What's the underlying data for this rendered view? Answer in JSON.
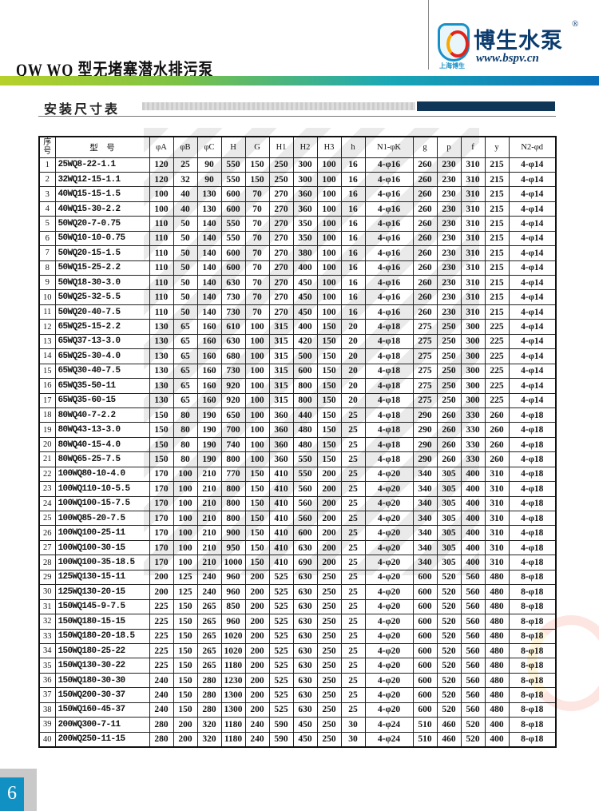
{
  "header": {
    "title": "QW  WQ 型无堵塞潜水排污泵",
    "logo": {
      "brand": "博生水泵",
      "registered": "®",
      "url": "www.bspv.cn",
      "sub": "上海博生"
    },
    "accent_colors": {
      "gradient_start": "#b7d12a",
      "gradient_end": "#0a6fb8",
      "navy": "#0f3557"
    }
  },
  "section": {
    "title": "安装尺寸表"
  },
  "table": {
    "columns": [
      "序号",
      "型　号",
      "φA",
      "φB",
      "φC",
      "H",
      "G",
      "H1",
      "H2",
      "H3",
      "h",
      "N1-φK",
      "g",
      "p",
      "f",
      "y",
      "N2-φd"
    ],
    "rows": [
      [
        "1",
        "25WQ8-22-1.1",
        "120",
        "25",
        "90",
        "550",
        "150",
        "250",
        "300",
        "100",
        "16",
        "4-φ16",
        "260",
        "230",
        "310",
        "215",
        "4-φ14"
      ],
      [
        "2",
        "32WQ12-15-1.1",
        "120",
        "32",
        "90",
        "550",
        "150",
        "250",
        "300",
        "100",
        "16",
        "4-φ16",
        "260",
        "230",
        "310",
        "215",
        "4-φ14"
      ],
      [
        "3",
        "40WQ15-15-1.5",
        "100",
        "40",
        "130",
        "600",
        "70",
        "270",
        "360",
        "100",
        "16",
        "4-φ16",
        "260",
        "230",
        "310",
        "215",
        "4-φ14"
      ],
      [
        "4",
        "40WQ15-30-2.2",
        "100",
        "40",
        "130",
        "600",
        "70",
        "270",
        "360",
        "100",
        "16",
        "4-φ16",
        "260",
        "230",
        "310",
        "215",
        "4-φ14"
      ],
      [
        "5",
        "50WQ20-7-0.75",
        "110",
        "50",
        "140",
        "550",
        "70",
        "270",
        "350",
        "100",
        "16",
        "4-φ16",
        "260",
        "230",
        "310",
        "215",
        "4-φ14"
      ],
      [
        "6",
        "50WQ10-10-0.75",
        "110",
        "50",
        "140",
        "550",
        "70",
        "270",
        "350",
        "100",
        "16",
        "4-φ16",
        "260",
        "230",
        "310",
        "215",
        "4-φ14"
      ],
      [
        "7",
        "50WQ20-15-1.5",
        "110",
        "50",
        "140",
        "600",
        "70",
        "270",
        "380",
        "100",
        "16",
        "4-φ16",
        "260",
        "230",
        "310",
        "215",
        "4-φ14"
      ],
      [
        "8",
        "50WQ15-25-2.2",
        "110",
        "50",
        "140",
        "600",
        "70",
        "270",
        "400",
        "100",
        "16",
        "4-φ16",
        "260",
        "230",
        "310",
        "215",
        "4-φ14"
      ],
      [
        "9",
        "50WQ18-30-3.0",
        "110",
        "50",
        "140",
        "630",
        "70",
        "270",
        "450",
        "100",
        "16",
        "4-φ16",
        "260",
        "230",
        "310",
        "215",
        "4-φ14"
      ],
      [
        "10",
        "50WQ25-32-5.5",
        "110",
        "50",
        "140",
        "730",
        "70",
        "270",
        "450",
        "100",
        "16",
        "4-φ16",
        "260",
        "230",
        "310",
        "215",
        "4-φ14"
      ],
      [
        "11",
        "50WQ20-40-7.5",
        "110",
        "50",
        "140",
        "730",
        "70",
        "270",
        "450",
        "100",
        "16",
        "4-φ16",
        "260",
        "230",
        "310",
        "215",
        "4-φ14"
      ],
      [
        "12",
        "65WQ25-15-2.2",
        "130",
        "65",
        "160",
        "610",
        "100",
        "315",
        "400",
        "150",
        "20",
        "4-φ18",
        "275",
        "250",
        "300",
        "225",
        "4-φ14"
      ],
      [
        "13",
        "65WQ37-13-3.0",
        "130",
        "65",
        "160",
        "630",
        "100",
        "315",
        "420",
        "150",
        "20",
        "4-φ18",
        "275",
        "250",
        "300",
        "225",
        "4-φ14"
      ],
      [
        "14",
        "65WQ25-30-4.0",
        "130",
        "65",
        "160",
        "680",
        "100",
        "315",
        "500",
        "150",
        "20",
        "4-φ18",
        "275",
        "250",
        "300",
        "225",
        "4-φ14"
      ],
      [
        "15",
        "65WQ30-40-7.5",
        "130",
        "65",
        "160",
        "730",
        "100",
        "315",
        "600",
        "150",
        "20",
        "4-φ18",
        "275",
        "250",
        "300",
        "225",
        "4-φ14"
      ],
      [
        "16",
        "65WQ35-50-11",
        "130",
        "65",
        "160",
        "920",
        "100",
        "315",
        "800",
        "150",
        "20",
        "4-φ18",
        "275",
        "250",
        "300",
        "225",
        "4-φ14"
      ],
      [
        "17",
        "65WQ35-60-15",
        "130",
        "65",
        "160",
        "920",
        "100",
        "315",
        "800",
        "150",
        "20",
        "4-φ18",
        "275",
        "250",
        "300",
        "225",
        "4-φ14"
      ],
      [
        "18",
        "80WQ40-7-2.2",
        "150",
        "80",
        "190",
        "650",
        "100",
        "360",
        "440",
        "150",
        "25",
        "4-φ18",
        "290",
        "260",
        "330",
        "260",
        "4-φ18"
      ],
      [
        "19",
        "80WQ43-13-3.0",
        "150",
        "80",
        "190",
        "700",
        "100",
        "360",
        "480",
        "150",
        "25",
        "4-φ18",
        "290",
        "260",
        "330",
        "260",
        "4-φ18"
      ],
      [
        "20",
        "80WQ40-15-4.0",
        "150",
        "80",
        "190",
        "740",
        "100",
        "360",
        "480",
        "150",
        "25",
        "4-φ18",
        "290",
        "260",
        "330",
        "260",
        "4-φ18"
      ],
      [
        "21",
        "80WQ65-25-7.5",
        "150",
        "80",
        "190",
        "800",
        "100",
        "360",
        "550",
        "150",
        "25",
        "4-φ18",
        "290",
        "260",
        "330",
        "260",
        "4-φ18"
      ],
      [
        "22",
        "100WQ80-10-4.0",
        "170",
        "100",
        "210",
        "770",
        "150",
        "410",
        "550",
        "200",
        "25",
        "4-φ20",
        "340",
        "305",
        "400",
        "310",
        "4-φ18"
      ],
      [
        "23",
        "100WQ110-10-5.5",
        "170",
        "100",
        "210",
        "800",
        "150",
        "410",
        "560",
        "200",
        "25",
        "4-φ20",
        "340",
        "305",
        "400",
        "310",
        "4-φ18"
      ],
      [
        "24",
        "100WQ100-15-7.5",
        "170",
        "100",
        "210",
        "800",
        "150",
        "410",
        "560",
        "200",
        "25",
        "4-φ20",
        "340",
        "305",
        "400",
        "310",
        "4-φ18"
      ],
      [
        "25",
        "100WQ85-20-7.5",
        "170",
        "100",
        "210",
        "800",
        "150",
        "410",
        "560",
        "200",
        "25",
        "4-φ20",
        "340",
        "305",
        "400",
        "310",
        "4-φ18"
      ],
      [
        "26",
        "100WQ100-25-11",
        "170",
        "100",
        "210",
        "900",
        "150",
        "410",
        "600",
        "200",
        "25",
        "4-φ20",
        "340",
        "305",
        "400",
        "310",
        "4-φ18"
      ],
      [
        "27",
        "100WQ100-30-15",
        "170",
        "100",
        "210",
        "950",
        "150",
        "410",
        "630",
        "200",
        "25",
        "4-φ20",
        "340",
        "305",
        "400",
        "310",
        "4-φ18"
      ],
      [
        "28",
        "100WQ100-35-18.5",
        "170",
        "100",
        "210",
        "1000",
        "150",
        "410",
        "690",
        "200",
        "25",
        "4-φ20",
        "340",
        "305",
        "400",
        "310",
        "4-φ18"
      ],
      [
        "29",
        "125WQ130-15-11",
        "200",
        "125",
        "240",
        "960",
        "200",
        "525",
        "630",
        "250",
        "25",
        "4-φ20",
        "600",
        "520",
        "560",
        "480",
        "8-φ18"
      ],
      [
        "30",
        "125WQ130-20-15",
        "200",
        "125",
        "240",
        "960",
        "200",
        "525",
        "630",
        "250",
        "25",
        "4-φ20",
        "600",
        "520",
        "560",
        "480",
        "8-φ18"
      ],
      [
        "31",
        "150WQ145-9-7.5",
        "225",
        "150",
        "265",
        "850",
        "200",
        "525",
        "630",
        "250",
        "25",
        "4-φ20",
        "600",
        "520",
        "560",
        "480",
        "8-φ18"
      ],
      [
        "32",
        "150WQ180-15-15",
        "225",
        "150",
        "265",
        "960",
        "200",
        "525",
        "630",
        "250",
        "25",
        "4-φ20",
        "600",
        "520",
        "560",
        "480",
        "8-φ18"
      ],
      [
        "33",
        "150WQ180-20-18.5",
        "225",
        "150",
        "265",
        "1020",
        "200",
        "525",
        "630",
        "250",
        "25",
        "4-φ20",
        "600",
        "520",
        "560",
        "480",
        "8-φ18"
      ],
      [
        "34",
        "150WQ180-25-22",
        "225",
        "150",
        "265",
        "1020",
        "200",
        "525",
        "630",
        "250",
        "25",
        "4-φ20",
        "600",
        "520",
        "560",
        "480",
        "8-φ18"
      ],
      [
        "35",
        "150WQ130-30-22",
        "225",
        "150",
        "265",
        "1180",
        "200",
        "525",
        "630",
        "250",
        "25",
        "4-φ20",
        "600",
        "520",
        "560",
        "480",
        "8-φ18"
      ],
      [
        "36",
        "150WQ180-30-30",
        "240",
        "150",
        "280",
        "1230",
        "200",
        "525",
        "630",
        "250",
        "25",
        "4-φ20",
        "600",
        "520",
        "560",
        "480",
        "8-φ18"
      ],
      [
        "37",
        "150WQ200-30-37",
        "240",
        "150",
        "280",
        "1300",
        "200",
        "525",
        "630",
        "250",
        "25",
        "4-φ20",
        "600",
        "520",
        "560",
        "480",
        "8-φ18"
      ],
      [
        "38",
        "150WQ160-45-37",
        "240",
        "150",
        "280",
        "1300",
        "200",
        "525",
        "630",
        "250",
        "25",
        "4-φ20",
        "600",
        "520",
        "560",
        "480",
        "8-φ18"
      ],
      [
        "39",
        "200WQ300-7-11",
        "280",
        "200",
        "320",
        "1180",
        "240",
        "590",
        "450",
        "250",
        "30",
        "4-φ24",
        "510",
        "460",
        "520",
        "400",
        "8-φ18"
      ],
      [
        "40",
        "200WQ250-11-15",
        "280",
        "200",
        "320",
        "1180",
        "240",
        "590",
        "450",
        "250",
        "30",
        "4-φ24",
        "510",
        "460",
        "520",
        "400",
        "8-φ18"
      ]
    ]
  },
  "footer": {
    "page_number": "6"
  }
}
